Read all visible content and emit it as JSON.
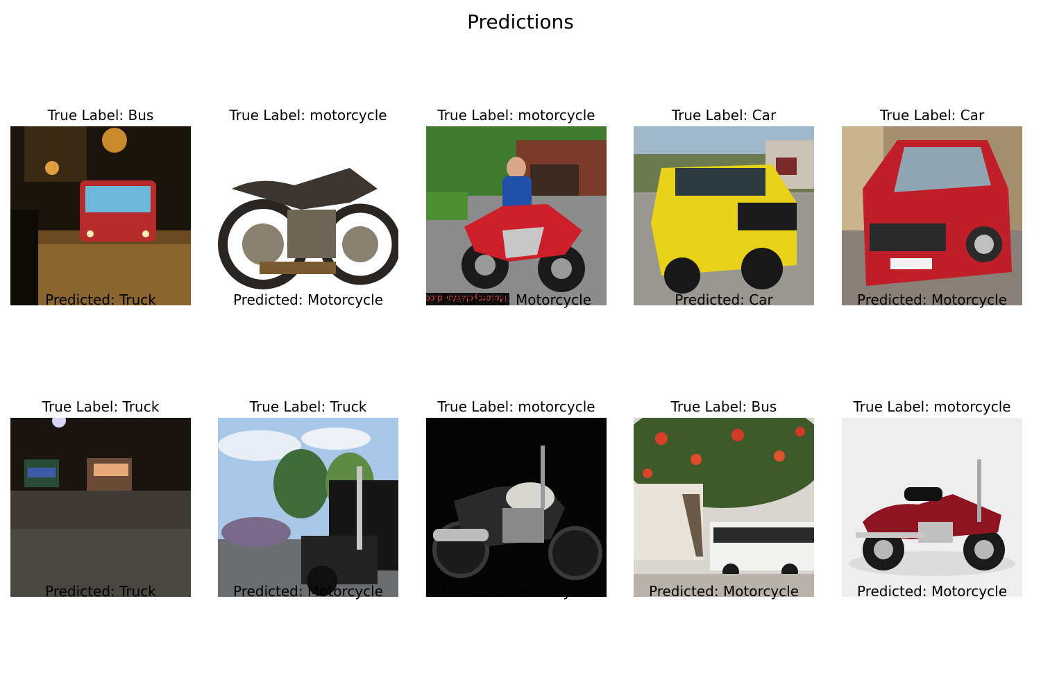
{
  "figure": {
    "title": "Predictions"
  },
  "grid": [
    {
      "true_label": "True Label: Bus",
      "predicted": "Predicted: Truck",
      "scene": "bus at night"
    },
    {
      "true_label": "True Label: motorcycle",
      "predicted": "Predicted: Motorcycle",
      "scene": "vintage motorcycle on white"
    },
    {
      "true_label": "True Label: motorcycle",
      "predicted": "Predicted: Motorcycle",
      "scene": "rider with red sport motorcycle",
      "watermark": "MotorcycleWorld.com"
    },
    {
      "true_label": "True Label: Car",
      "predicted": "Predicted: Car",
      "scene": "yellow SUV"
    },
    {
      "true_label": "True Label: Car",
      "predicted": "Predicted: Motorcycle",
      "scene": "red hatchback car"
    },
    {
      "true_label": "True Label: Truck",
      "predicted": "Predicted: Truck",
      "scene": "truck parked at night"
    },
    {
      "true_label": "True Label: Truck",
      "predicted": "Predicted: Motorcycle",
      "scene": "black semi truck under sky"
    },
    {
      "true_label": "True Label: motorcycle",
      "predicted": "Predicted: Motorcycle",
      "scene": "silver motorcycle on black"
    },
    {
      "true_label": "True Label: Bus",
      "predicted": "Predicted: Motorcycle",
      "scene": "bus under flowering tree"
    },
    {
      "true_label": "True Label: motorcycle",
      "predicted": "Predicted: Motorcycle",
      "scene": "red cruiser motorcycle on white"
    }
  ]
}
